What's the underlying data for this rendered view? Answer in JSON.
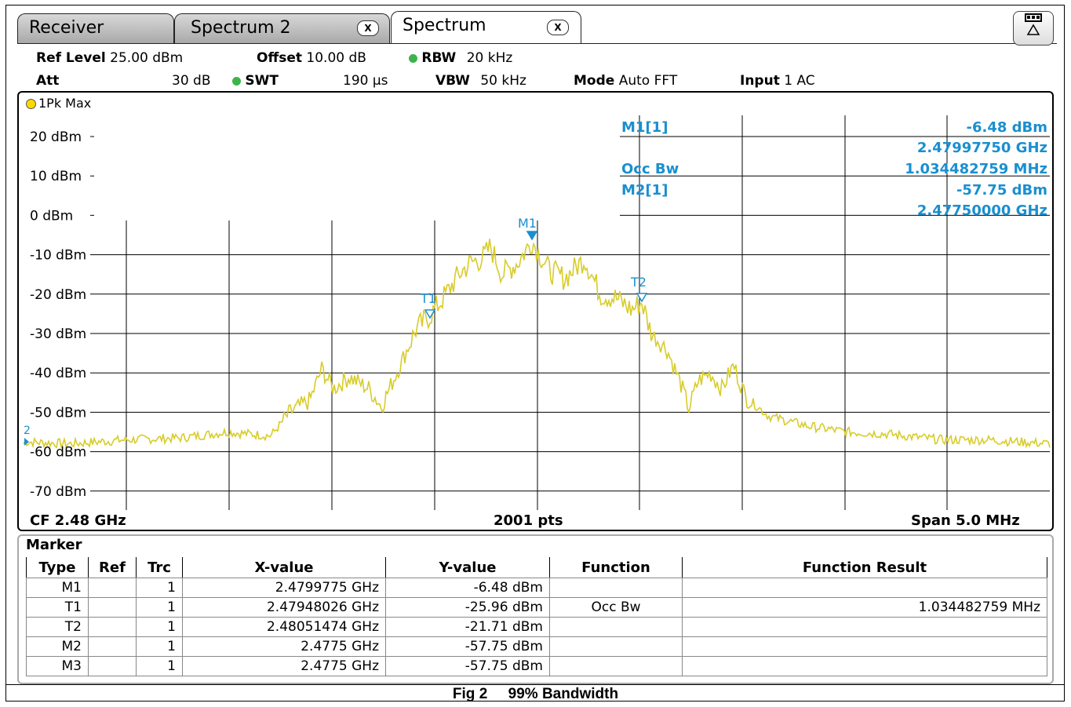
{
  "tabs": [
    {
      "label": "Receiver",
      "closable": false
    },
    {
      "label": "Spectrum 2",
      "closable": true
    },
    {
      "label": "Spectrum",
      "closable": true
    }
  ],
  "close_glyph": "X",
  "header": {
    "ref_level_label": "Ref Level",
    "ref_level_value": "25.00 dBm",
    "offset_label": "Offset",
    "offset_value": "10.00 dB",
    "rbw_label": "RBW",
    "rbw_value": "20 kHz",
    "att_label": "Att",
    "att_value": "30 dB",
    "swt_label": "SWT",
    "swt_value": "190 µs",
    "vbw_label": "VBW",
    "vbw_value": "50 kHz",
    "mode_label": "Mode",
    "mode_value": "Auto FFT",
    "input_label": "Input",
    "input_value": "1 AC"
  },
  "trace_label": "1Pk Max",
  "y_axis_labels": [
    "20 dBm",
    "10 dBm",
    "0 dBm",
    "-10 dBm",
    "-20 dBm",
    "-30 dBm",
    "-40 dBm",
    "-50 dBm",
    "-60 dBm",
    "-70 dBm"
  ],
  "bottom": {
    "cf": "CF 2.48 GHz",
    "pts": "2001 pts",
    "span": "Span 5.0 MHz"
  },
  "marker_info": {
    "m1_label": "M1[1]",
    "m1_level": "-6.48 dBm",
    "m1_freq": "2.47997750 GHz",
    "occ_label": "Occ Bw",
    "occ_value": "1.034482759 MHz",
    "m2_label": "M2[1]",
    "m2_level": "-57.75 dBm",
    "m2_freq": "2.47750000 GHz"
  },
  "plot_markers": {
    "m1": "M1",
    "t1": "T1",
    "t2": "T2",
    "m2": "2"
  },
  "marker_table": {
    "title": "Marker",
    "headers": [
      "Type",
      "Ref",
      "Trc",
      "X-value",
      "Y-value",
      "Function",
      "Function Result"
    ],
    "rows": [
      [
        "M1",
        "",
        "1",
        "2.4799775 GHz",
        "-6.48 dBm",
        "",
        ""
      ],
      [
        "T1",
        "",
        "1",
        "2.47948026 GHz",
        "-25.96 dBm",
        "Occ Bw",
        "1.034482759 MHz"
      ],
      [
        "T2",
        "",
        "1",
        "2.48051474 GHz",
        "-21.71 dBm",
        "",
        ""
      ],
      [
        "M2",
        "",
        "1",
        "2.4775 GHz",
        "-57.75 dBm",
        "",
        ""
      ],
      [
        "M3",
        "",
        "1",
        "2.4775 GHz",
        "-57.75 dBm",
        "",
        ""
      ]
    ]
  },
  "caption": "Fig 2     99% Bandwidth",
  "colors": {
    "trace": "#d8cc2a",
    "marker": "#1a8fd0",
    "grid": "#000000"
  }
}
